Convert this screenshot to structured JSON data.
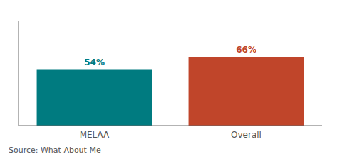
{
  "chart_data": {
    "type": "bar",
    "categories": [
      "MELAA",
      "Overall"
    ],
    "values": [
      54,
      66
    ],
    "value_labels": [
      "54%",
      "66%"
    ],
    "colors": [
      "#007B80",
      "#C0452A"
    ],
    "ylim": [
      0,
      100
    ],
    "grid": false,
    "data_labels": true,
    "tick_labels": "x",
    "annotation": "Source: What About Me"
  }
}
